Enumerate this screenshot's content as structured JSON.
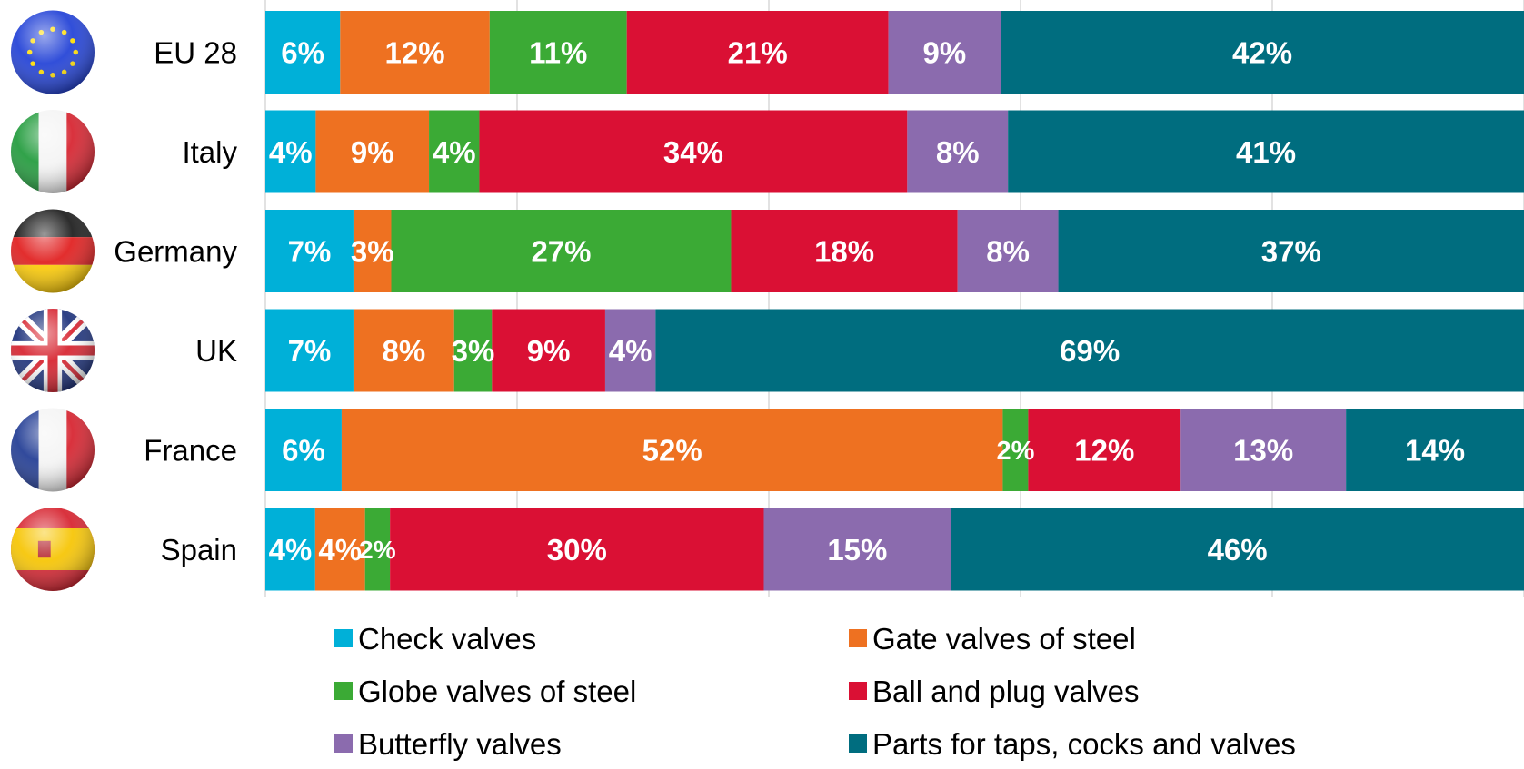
{
  "chart_data": {
    "type": "bar",
    "orientation": "horizontal",
    "stacked": true,
    "normalized_percent": true,
    "grid": true,
    "legend_placement": "bottom",
    "xlim": [
      0,
      100
    ],
    "categories": [
      "EU 28",
      "Italy",
      "Germany",
      "UK",
      "France",
      "Spain"
    ],
    "category_flag_icons": [
      "eu-flag-icon",
      "italy-flag-icon",
      "germany-flag-icon",
      "uk-flag-icon",
      "france-flag-icon",
      "spain-flag-icon"
    ],
    "series": [
      {
        "name": "Check valves",
        "color": "#00B0D8",
        "values": [
          6,
          4,
          7,
          7,
          6,
          4
        ],
        "labels": [
          "6%",
          "4%",
          "7%",
          "7%",
          "6%",
          "4%"
        ]
      },
      {
        "name": "Gate valves of steel",
        "color": "#EE7121",
        "values": [
          12,
          9,
          3,
          8,
          52,
          4
        ],
        "labels": [
          "12%",
          "9%",
          "3%",
          "8%",
          "52%",
          "4%"
        ]
      },
      {
        "name": "Globe valves of steel",
        "color": "#3BAA35",
        "values": [
          11,
          4,
          27,
          3,
          2,
          2
        ],
        "labels": [
          "11%",
          "4%",
          "27%",
          "3%",
          "2%",
          "2%"
        ]
      },
      {
        "name": "Ball and plug valves",
        "color": "#DA1034",
        "values": [
          21,
          34,
          18,
          9,
          12,
          30
        ],
        "labels": [
          "21%",
          "34%",
          "18%",
          "9%",
          "12%",
          "30%"
        ]
      },
      {
        "name": "Butterfly valves",
        "color": "#8B6BAE",
        "values": [
          9,
          8,
          8,
          4,
          13,
          15
        ],
        "labels": [
          "9%",
          "8%",
          "8%",
          "4%",
          "13%",
          "15%"
        ]
      },
      {
        "name": "Parts for taps, cocks and valves",
        "color": "#006D7F",
        "values": [
          42,
          41,
          37,
          69,
          14,
          46
        ],
        "labels": [
          "42%",
          "41%",
          "37%",
          "69%",
          "14%",
          "46%"
        ]
      }
    ]
  }
}
